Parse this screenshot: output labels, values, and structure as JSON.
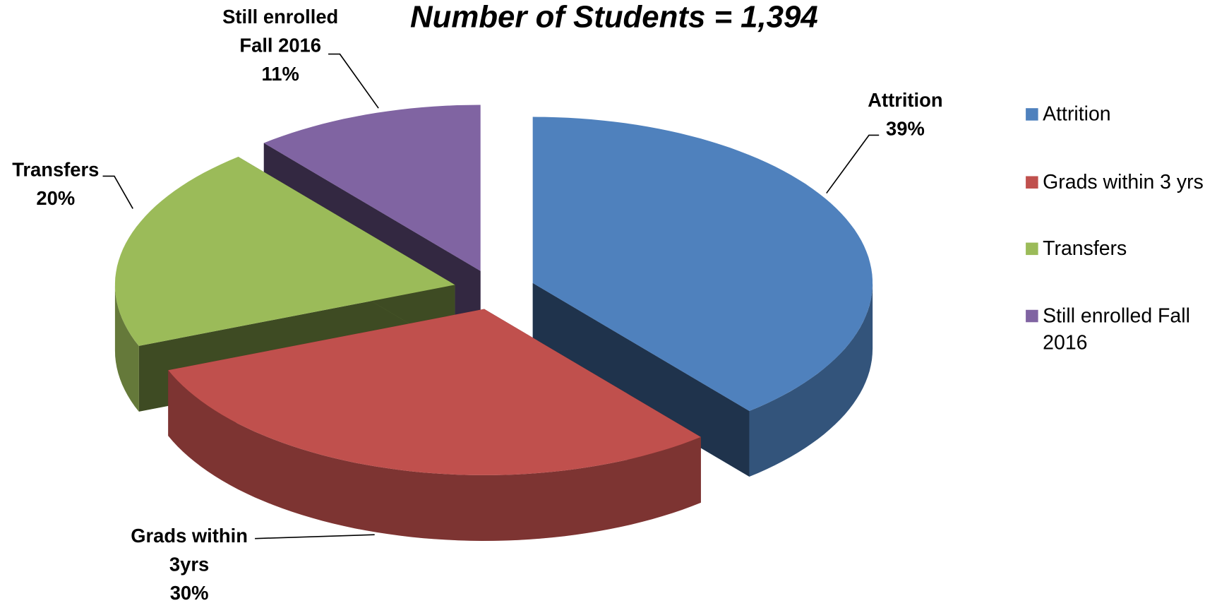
{
  "chart_data": {
    "type": "pie3d",
    "title": "Number of Students = 1,394",
    "categories": [
      "Attrition",
      "Grads within 3 yrs",
      "Transfers",
      "Still enrolled Fall 2016"
    ],
    "data_label_names": [
      "Attrition",
      "Grads within 3yrs",
      "Transfers",
      "Still enrolled Fall 2016"
    ],
    "values": [
      39,
      30,
      20,
      11
    ],
    "value_labels": [
      "39%",
      "30%",
      "20%",
      "11%"
    ],
    "colors": [
      "#4f81bd",
      "#c0504d",
      "#9bbb59",
      "#8064a2"
    ],
    "legend": "right"
  }
}
